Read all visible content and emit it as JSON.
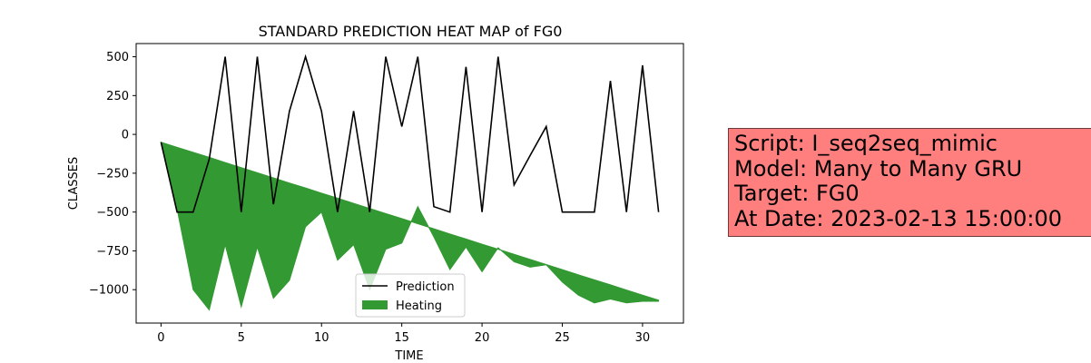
{
  "chart_data": {
    "type": "line",
    "title": "STANDARD PREDICTION HEAT MAP of FG0",
    "xlabel": "TIME",
    "ylabel": "CLASSES",
    "xlim": [
      -1.55,
      32.55
    ],
    "ylim": [
      -1215,
      585
    ],
    "xticks": [
      0,
      5,
      10,
      15,
      20,
      25,
      30
    ],
    "yticks": [
      500,
      250,
      0,
      -250,
      -500,
      -750,
      -1000
    ],
    "ytick_labels": [
      "500",
      "250",
      "0",
      "−250",
      "−500",
      "−750",
      "−1000"
    ],
    "legend_position": "lower center",
    "grid": false,
    "series": [
      {
        "name": "Prediction",
        "kind": "line",
        "color": "#000000",
        "x": [
          0,
          1,
          2,
          3,
          4,
          5,
          6,
          7,
          8,
          9,
          10,
          11,
          12,
          13,
          14,
          15,
          16,
          17,
          18,
          19,
          20,
          21,
          22,
          23,
          24,
          25,
          26,
          27,
          28,
          29,
          30,
          31
        ],
        "y": [
          -50,
          -500,
          -500,
          -160,
          500,
          -500,
          500,
          -450,
          150,
          500,
          150,
          -500,
          150,
          -500,
          500,
          50,
          500,
          -465,
          -500,
          435,
          -500,
          500,
          -325,
          -135,
          50,
          -500,
          -500,
          -500,
          345,
          -500,
          445,
          -500
        ]
      },
      {
        "name": "Heating",
        "kind": "fill_between",
        "color": "#339933",
        "x": [
          0,
          1,
          2,
          3,
          4,
          5,
          6,
          7,
          8,
          9,
          10,
          11,
          12,
          13,
          14,
          15,
          16,
          17,
          18,
          19,
          20,
          21,
          22,
          23,
          24,
          25,
          26,
          27,
          28,
          29,
          30,
          31
        ],
        "y_upper": [
          -50,
          -83,
          -116,
          -148,
          -181,
          -214,
          -247,
          -280,
          -313,
          -345,
          -378,
          -411,
          -444,
          -477,
          -510,
          -542,
          -575,
          -608,
          -641,
          -674,
          -707,
          -739,
          -772,
          -805,
          -838,
          -871,
          -904,
          -936,
          -969,
          -1002,
          -1035,
          -1068
        ],
        "y_lower": [
          -50,
          -480,
          -1000,
          -1130,
          -710,
          -1110,
          -725,
          -1055,
          -940,
          -595,
          -500,
          -810,
          -710,
          -1000,
          -740,
          -700,
          -465,
          -660,
          -870,
          -725,
          -885,
          -730,
          -820,
          -855,
          -840,
          -950,
          -1035,
          -1085,
          -1060,
          -1085,
          -1075,
          -1075
        ]
      }
    ]
  },
  "info": {
    "line1": "Script: I_seq2seq_mimic",
    "line2": "Model: Many to Many GRU",
    "line3": "Target: FG0",
    "line4": "At Date: 2023-02-13 15:00:00",
    "background": "#ff7f7f"
  }
}
